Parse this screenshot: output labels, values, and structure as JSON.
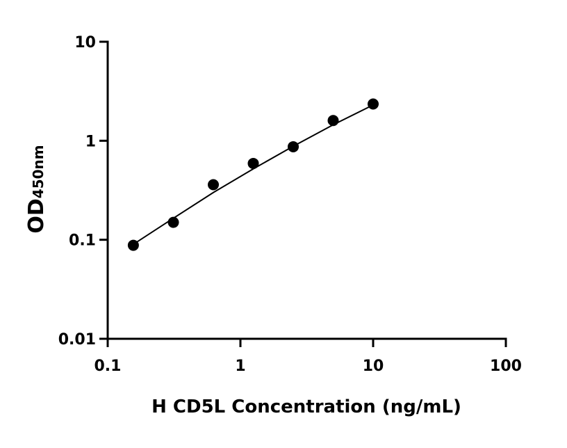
{
  "chart_data": {
    "type": "scatter",
    "x_label": "H CD5L Concentration (ng/mL)",
    "y_label": "OD",
    "y_label_subscript": "450nm",
    "x_log": true,
    "y_log": true,
    "xlim": [
      0.1,
      100
    ],
    "xticks": [
      0.1,
      1,
      10,
      100
    ],
    "ylim": [
      0.01,
      10
    ],
    "yticks": [
      0.01,
      0.1,
      1,
      10
    ],
    "color": "#000000",
    "x": [
      0.156,
      0.3125,
      0.625,
      1.25,
      2.5,
      5,
      10
    ],
    "values": [
      0.088,
      0.15,
      0.36,
      0.59,
      0.87,
      1.6,
      2.35
    ],
    "fit_line": {
      "x": [
        0.156,
        0.3125,
        0.625,
        1.25,
        2.5,
        5,
        10
      ],
      "values": [
        0.09,
        0.165,
        0.3,
        0.52,
        0.88,
        1.45,
        2.3
      ]
    }
  }
}
